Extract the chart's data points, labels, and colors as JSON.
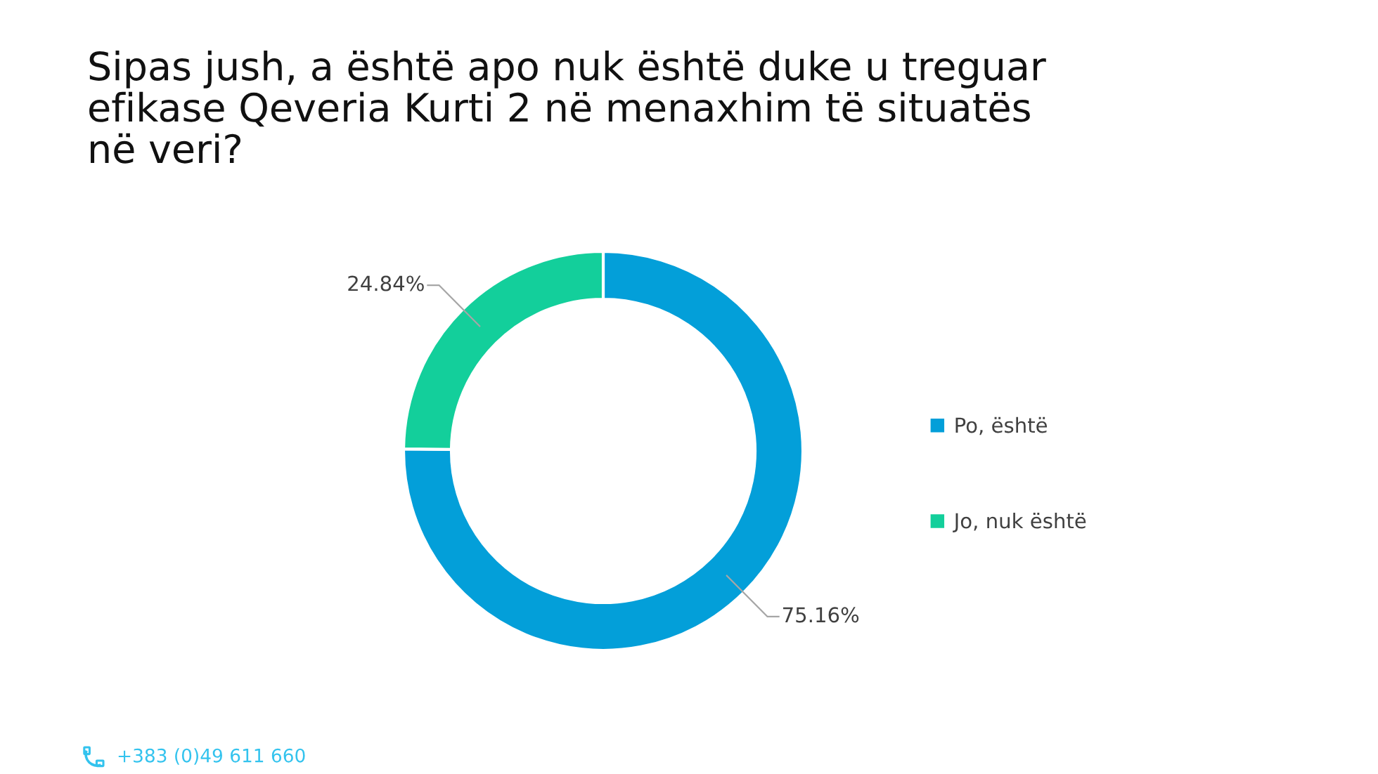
{
  "chart_data": {
    "type": "donut",
    "title": "Sipas jush, a është apo nuk është duke u treguar efikase Qeveria Kurti 2 në menaxhim të situatës në veri?",
    "categories": [
      "Po, është",
      "Jo, nuk është"
    ],
    "values": [
      75.16,
      24.84
    ],
    "colors": [
      "#039fd9",
      "#13cf9b"
    ],
    "value_labels": [
      "75.16%",
      "24.84%"
    ],
    "legend": "right",
    "annotations": [
      "+383 (0)49 611 660"
    ]
  }
}
